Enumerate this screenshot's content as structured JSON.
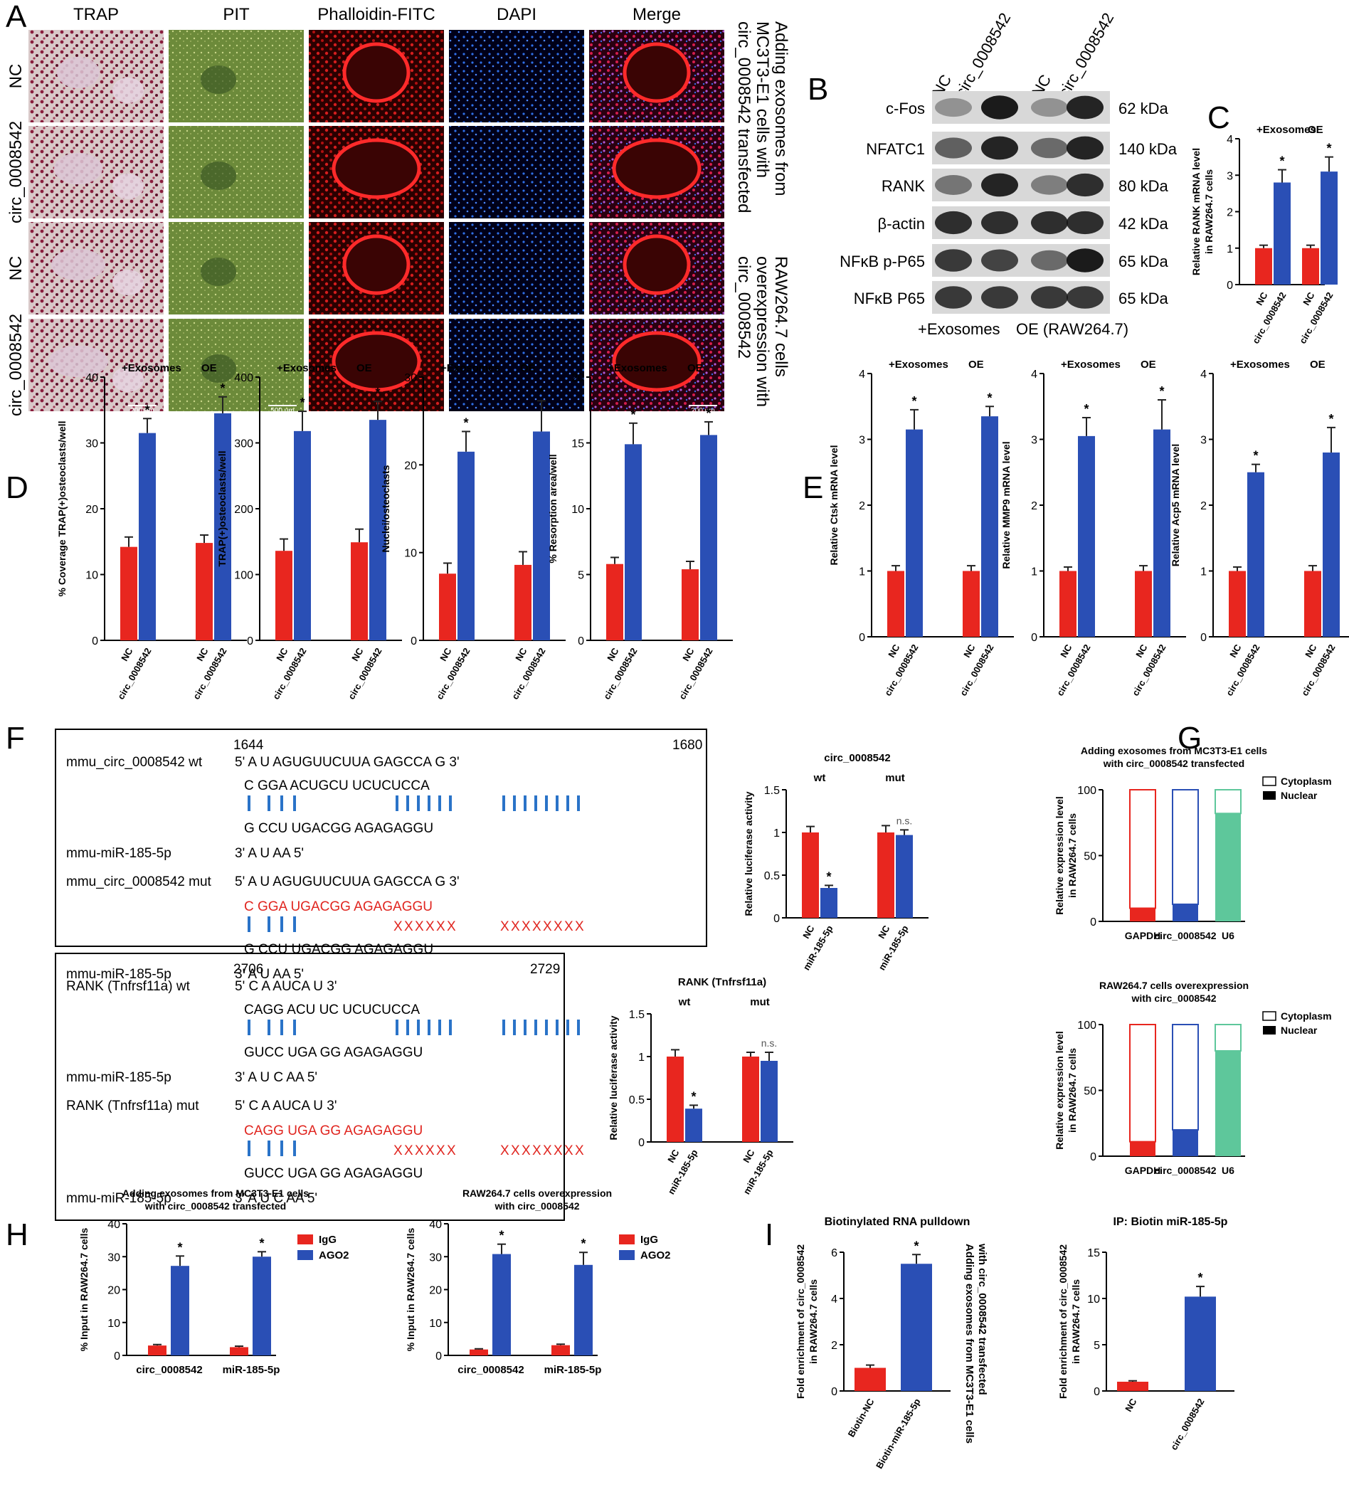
{
  "panel_letters": [
    "A",
    "B",
    "C",
    "D",
    "E",
    "F",
    "G",
    "H",
    "I"
  ],
  "panelA": {
    "columns": [
      "TRAP",
      "PIT",
      "Phalloidin-FITC",
      "DAPI",
      "Merge"
    ],
    "rows": [
      "NC",
      "circ_0008542",
      "NC",
      "circ_0008542"
    ],
    "side_text_1": [
      "Adding exosomes from",
      "MC3T3-E1 cells with",
      "circ_0008542 transfected"
    ],
    "side_text_2": [
      "RAW264.7 cells",
      "overexpression with",
      "circ_0008542"
    ],
    "scale_labels": [
      "200 μm",
      "500 μm",
      "200 μm"
    ]
  },
  "panelB": {
    "lane_labels": [
      "NC",
      "circ_0008542",
      "NC",
      "circ_0008542"
    ],
    "bands": [
      {
        "name": "c-Fos",
        "size": "62 kDa"
      },
      {
        "name": "NFATC1",
        "size": "140 kDa"
      },
      {
        "name": "RANK",
        "size": "80 kDa"
      },
      {
        "name": "β-actin",
        "size": "42 kDa"
      },
      {
        "name": "NFκB p-P65",
        "size": "65 kDa"
      },
      {
        "name": "NFκB P65",
        "size": "65 kDa"
      }
    ],
    "bottom_labels": [
      "+Exosomes",
      "OE (RAW264.7)"
    ]
  },
  "group_labels": [
    "+Exosomes",
    "OE"
  ],
  "xcats": [
    "NC",
    "circ_0008542",
    "NC",
    "circ_0008542"
  ],
  "sig": "*",
  "ns": "n.s.",
  "colors": {
    "red": "#e8261f",
    "blue": "#2a4fb5",
    "green": "#5ec79b"
  },
  "panelF": {
    "box1": {
      "start": "1644",
      "end": "1680",
      "rows": [
        {
          "label": "mmu_circ_0008542 wt",
          "seq": "5' A    U        AGUGUUCUUA                GAGCCA                      G 3'"
        },
        {
          "label": "",
          "seq": "C   GGA                    ACUGCU              UCUCUCCA"
        },
        {
          "label": "",
          "seq": "G   CCU                    UGACGG              AGAGAGGU"
        },
        {
          "label": "mmu-miR-185-5p",
          "seq": "3' A    U                                        AA                                5'"
        },
        {
          "label": "mmu_circ_0008542 mut",
          "seq": "5' A    U        AGUGUUCUUA                GAGCCA                      G 3'"
        },
        {
          "label": "",
          "seq": "C   GGA                    UGACGG              AGAGAGGU"
        },
        {
          "label": "",
          "seq": "G   CCU                    UGACGG              AGAGAGGU"
        },
        {
          "label": "mmu-miR-185-5p",
          "seq": "3' A    U                                        AA                                5'"
        }
      ]
    },
    "box2": {
      "start": "2706",
      "end": "2729",
      "rows": [
        {
          "label": "RANK (Tnfrsf11a) wt",
          "seq": "5' C                    A       AUCA                   U 3'"
        },
        {
          "label": "",
          "seq": "CAGG   ACU    UC      UCUCUCCA"
        },
        {
          "label": "",
          "seq": "GUCC   UGA    GG      AGAGAGGU"
        },
        {
          "label": "mmu-miR-185-5p",
          "seq": "3' A         U        C        AA                       5'"
        },
        {
          "label": "RANK (Tnfrsf11a) mut",
          "seq": "5' C                    A       AUCA                   U 3'"
        },
        {
          "label": "",
          "seq": "CAGG   UGA    GG      AGAGAGGU"
        },
        {
          "label": "",
          "seq": "GUCC   UGA    GG      AGAGAGGU"
        },
        {
          "label": "mmu-miR-185-5p",
          "seq": "3' A         U        C        AA                       5'"
        }
      ]
    }
  },
  "chart_data": [
    {
      "id": "C",
      "type": "bar",
      "ylabel": "Relative RANK mRNA level in RAW264.7 cells",
      "ylim": [
        0,
        4
      ],
      "yticks": [
        0,
        1,
        2,
        3,
        4
      ],
      "categories": [
        "NC",
        "circ_0008542",
        "NC",
        "circ_0008542"
      ],
      "values": [
        1.0,
        2.8,
        1.0,
        3.1
      ],
      "errors": [
        0.08,
        0.35,
        0.08,
        0.4
      ],
      "sig": [
        false,
        true,
        false,
        true
      ]
    },
    {
      "id": "D1",
      "type": "bar",
      "ylabel": "% Coverage TRAP(+)osteoclasts/well",
      "ylim": [
        0,
        40
      ],
      "yticks": [
        0,
        10,
        20,
        30,
        40
      ],
      "categories": [
        "NC",
        "circ_0008542",
        "NC",
        "circ_0008542"
      ],
      "values": [
        14.2,
        31.5,
        14.8,
        34.5
      ],
      "errors": [
        1.5,
        2.2,
        1.2,
        2.5
      ],
      "sig": [
        false,
        true,
        false,
        true
      ]
    },
    {
      "id": "D2",
      "type": "bar",
      "ylabel": "TRAP(+)osteoclasts/well",
      "ylim": [
        0,
        400
      ],
      "yticks": [
        0,
        100,
        200,
        300,
        400
      ],
      "categories": [
        "NC",
        "circ_0008542",
        "NC",
        "circ_0008542"
      ],
      "values": [
        136,
        318,
        149,
        335
      ],
      "errors": [
        18,
        30,
        20,
        28
      ],
      "sig": [
        false,
        true,
        false,
        true
      ]
    },
    {
      "id": "D3",
      "type": "bar",
      "ylabel": "Nuclei/osteoclasts",
      "ylim": [
        0,
        30
      ],
      "yticks": [
        0,
        10,
        20,
        30
      ],
      "categories": [
        "NC",
        "circ_0008542",
        "NC",
        "circ_0008542"
      ],
      "values": [
        7.6,
        21.5,
        8.6,
        23.8
      ],
      "errors": [
        1.2,
        2.3,
        1.5,
        3.5
      ],
      "sig": [
        false,
        true,
        false,
        true
      ]
    },
    {
      "id": "D4",
      "type": "bar",
      "ylabel": "% Resorption area/well",
      "ylim": [
        0,
        20
      ],
      "yticks": [
        0,
        5,
        10,
        15,
        20
      ],
      "categories": [
        "NC",
        "circ_0008542",
        "NC",
        "circ_0008542"
      ],
      "values": [
        5.8,
        14.9,
        5.4,
        15.6
      ],
      "errors": [
        0.5,
        1.6,
        0.6,
        1.0
      ],
      "sig": [
        false,
        true,
        false,
        true
      ]
    },
    {
      "id": "E1",
      "type": "bar",
      "ylabel": "Relative Ctsk mRNA level",
      "ylim": [
        0,
        4
      ],
      "yticks": [
        0,
        1,
        2,
        3,
        4
      ],
      "categories": [
        "NC",
        "circ_0008542",
        "NC",
        "circ_0008542"
      ],
      "values": [
        1.0,
        3.15,
        1.0,
        3.35
      ],
      "errors": [
        0.08,
        0.3,
        0.08,
        0.15
      ],
      "sig": [
        false,
        true,
        false,
        true
      ]
    },
    {
      "id": "E2",
      "type": "bar",
      "ylabel": "Relative MMP9 mRNA level",
      "ylim": [
        0,
        4
      ],
      "yticks": [
        0,
        1,
        2,
        3,
        4
      ],
      "categories": [
        "NC",
        "circ_0008542",
        "NC",
        "circ_0008542"
      ],
      "values": [
        1.0,
        3.05,
        1.0,
        3.15
      ],
      "errors": [
        0.06,
        0.28,
        0.08,
        0.45
      ],
      "sig": [
        false,
        true,
        false,
        true
      ]
    },
    {
      "id": "E3",
      "type": "bar",
      "ylabel": "Relative Acp5 mRNA level",
      "ylim": [
        0,
        4
      ],
      "yticks": [
        0,
        1,
        2,
        3,
        4
      ],
      "categories": [
        "NC",
        "circ_0008542",
        "NC",
        "circ_0008542"
      ],
      "values": [
        1.0,
        2.5,
        1.0,
        2.8
      ],
      "errors": [
        0.06,
        0.12,
        0.08,
        0.38
      ],
      "sig": [
        false,
        true,
        false,
        true
      ]
    },
    {
      "id": "F1",
      "type": "bar",
      "title": "circ_0008542",
      "groups": [
        "wt",
        "mut"
      ],
      "ylabel": "Relative luciferase activity",
      "ylim": [
        0,
        1.5
      ],
      "yticks": [
        0.0,
        0.5,
        1.0,
        1.5
      ],
      "categories": [
        "NC",
        "miR-185-5p",
        "NC",
        "miR-185-5p"
      ],
      "values": [
        1.0,
        0.35,
        1.0,
        0.97
      ],
      "errors": [
        0.07,
        0.03,
        0.08,
        0.06
      ],
      "sig": [
        false,
        true,
        false,
        false
      ]
    },
    {
      "id": "F2",
      "type": "bar",
      "title": "RANK (Tnfrsf11a)",
      "groups": [
        "wt",
        "mut"
      ],
      "ylabel": "Relative luciferase activity",
      "ylim": [
        0,
        1.5
      ],
      "yticks": [
        0.0,
        0.5,
        1.0,
        1.5
      ],
      "categories": [
        "NC",
        "miR-185-5p",
        "NC",
        "miR-185-5p"
      ],
      "values": [
        1.0,
        0.39,
        1.0,
        0.95
      ],
      "errors": [
        0.08,
        0.04,
        0.05,
        0.1
      ],
      "sig": [
        false,
        true,
        false,
        false
      ]
    },
    {
      "id": "G1",
      "type": "bar",
      "stacked": true,
      "title": [
        "Adding exosomes from MC3T3-E1 cells",
        "with circ_0008542 transfected"
      ],
      "ylabel": "Relative expression level in RAW264.7 cells",
      "ylim": [
        0,
        100
      ],
      "yticks": [
        0,
        50,
        100
      ],
      "categories": [
        "GAPDH",
        "circ_0008542",
        "U6"
      ],
      "series": [
        {
          "name": "Nuclear",
          "values": [
            10,
            13,
            82
          ]
        },
        {
          "name": "Cytoplasm",
          "values": [
            90,
            87,
            18
          ]
        }
      ]
    },
    {
      "id": "G2",
      "type": "bar",
      "stacked": true,
      "title": [
        "RAW264.7 cells overexpression",
        "with circ_0008542"
      ],
      "ylabel": "Relative expression level in RAW264.7 cells",
      "ylim": [
        0,
        100
      ],
      "yticks": [
        0,
        50,
        100
      ],
      "categories": [
        "GAPDH",
        "circ_0008542",
        "U6"
      ],
      "series": [
        {
          "name": "Nuclear",
          "values": [
            11,
            20,
            80
          ]
        },
        {
          "name": "Cytoplasm",
          "values": [
            89,
            80,
            20
          ]
        }
      ]
    },
    {
      "id": "H1",
      "type": "bar",
      "title": [
        "Adding exosomes from MC3T3-E1 cells",
        "with circ_0008542 transfected"
      ],
      "ylabel": "% Input in RAW264.7 cells",
      "ylim": [
        0,
        40
      ],
      "yticks": [
        0,
        10,
        20,
        30,
        40
      ],
      "categories": [
        "circ_0008542",
        "miR-185-5p"
      ],
      "series": [
        {
          "name": "IgG",
          "values": [
            3.0,
            2.5
          ],
          "errors": [
            0.3,
            0.3
          ]
        },
        {
          "name": "AGO2",
          "values": [
            27.2,
            30.0
          ],
          "errors": [
            3.0,
            1.5
          ]
        }
      ]
    },
    {
      "id": "H2",
      "type": "bar",
      "title": [
        "RAW264.7 cells overexpression",
        "with circ_0008542"
      ],
      "ylabel": "% Input in RAW264.7 cells",
      "ylim": [
        0,
        40
      ],
      "yticks": [
        0,
        10,
        20,
        30,
        40
      ],
      "categories": [
        "circ_0008542",
        "miR-185-5p"
      ],
      "series": [
        {
          "name": "IgG",
          "values": [
            1.8,
            3.1
          ],
          "errors": [
            0.2,
            0.3
          ]
        },
        {
          "name": "AGO2",
          "values": [
            30.8,
            27.5
          ],
          "errors": [
            3.0,
            3.8
          ]
        }
      ]
    },
    {
      "id": "I1",
      "type": "bar",
      "title": "Biotinylated RNA pulldown",
      "side_text": [
        "Adding exosomes from MC3T3-E1 cells",
        "with circ_0008542 transfected"
      ],
      "ylabel": "Fold enrichment of circ_0008542 in RAW264.7 cells",
      "ylim": [
        0,
        6
      ],
      "yticks": [
        0,
        2,
        4,
        6
      ],
      "categories": [
        "Biotin-NC",
        "Biotin-miR-185-5p"
      ],
      "values": [
        1.0,
        5.5
      ],
      "errors": [
        0.12,
        0.4
      ],
      "sig": [
        false,
        true
      ]
    },
    {
      "id": "I2",
      "type": "bar",
      "title": "IP: Biotin miR-185-5p",
      "ylabel": "Fold enrichment of circ_0008542 in RAW264.7 cells",
      "ylim": [
        0,
        15
      ],
      "yticks": [
        0,
        5,
        10,
        15
      ],
      "categories": [
        "NC",
        "circ_0008542"
      ],
      "values": [
        1.0,
        10.2
      ],
      "errors": [
        0.1,
        1.1
      ],
      "sig": [
        false,
        true
      ]
    }
  ]
}
